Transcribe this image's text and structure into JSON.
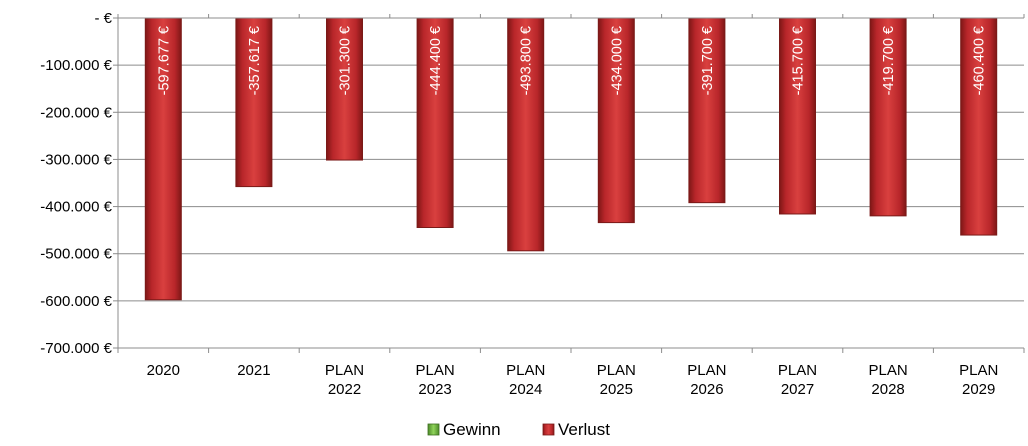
{
  "chart_data": {
    "type": "bar",
    "categories": [
      [
        "2020"
      ],
      [
        "2021"
      ],
      [
        "PLAN",
        "2022"
      ],
      [
        "PLAN",
        "2023"
      ],
      [
        "PLAN",
        "2024"
      ],
      [
        "PLAN",
        "2025"
      ],
      [
        "PLAN",
        "2026"
      ],
      [
        "PLAN",
        "2027"
      ],
      [
        "PLAN",
        "2028"
      ],
      [
        "PLAN",
        "2029"
      ]
    ],
    "series": [
      {
        "name": "Gewinn",
        "color": "#6db33f",
        "values": [
          0,
          0,
          0,
          0,
          0,
          0,
          0,
          0,
          0,
          0
        ],
        "labels": []
      },
      {
        "name": "Verlust",
        "color": "#c0302f",
        "values": [
          -597677,
          -357617,
          -301300,
          -444400,
          -493800,
          -434000,
          -391700,
          -415700,
          -419700,
          -460400
        ],
        "labels": [
          "-597.677 €",
          "-357.617 €",
          "-301.300 €",
          "-444.400 €",
          "-493.800 €",
          "-434.000 €",
          "-391.700 €",
          "-415.700 €",
          "-419.700 €",
          "-460.400 €"
        ]
      }
    ],
    "ylim": [
      -700000,
      0
    ],
    "yticks": [
      0,
      -100000,
      -200000,
      -300000,
      -400000,
      -500000,
      -600000,
      -700000
    ],
    "ytick_labels": [
      "- €",
      "-100.000 €",
      "-200.000 €",
      "-300.000 €",
      "-400.000 €",
      "-500.000 €",
      "-600.000 €",
      "-700.000 €"
    ],
    "grid": true,
    "legend": "bottom",
    "title": "",
    "xlabel": "",
    "ylabel": ""
  }
}
